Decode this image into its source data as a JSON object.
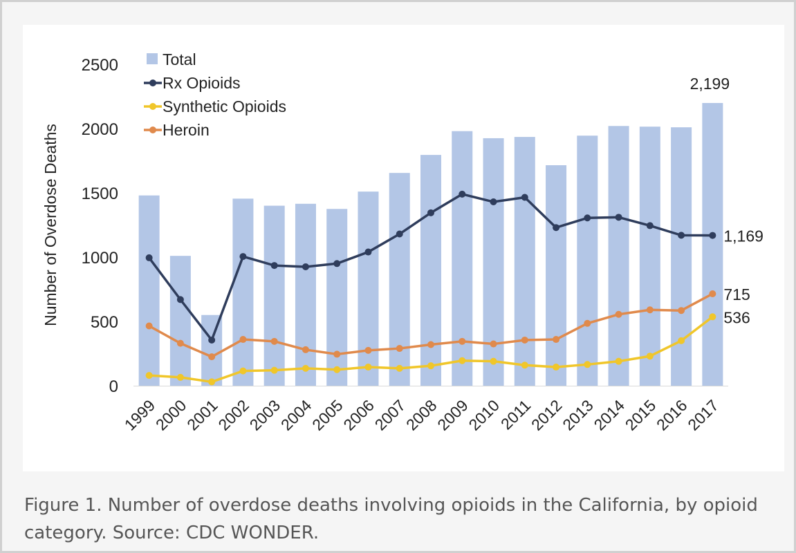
{
  "caption": "Figure 1. Number of overdose deaths involving opioids in the California, by opioid category. Source: CDC WONDER.",
  "colors": {
    "total": "#b3c6e6",
    "rx": "#2f3d5c",
    "synthetic": "#f0c62a",
    "heroin": "#e08a4c",
    "text": "#222222"
  },
  "chart_data": {
    "type": "bar",
    "title": "",
    "xlabel": "",
    "ylabel": "Number of Overdose Deaths",
    "ylim": [
      0,
      2500
    ],
    "yticks": [
      0,
      500,
      1000,
      1500,
      2000,
      2500
    ],
    "grid": false,
    "legend_position": "top-left",
    "categories": [
      "1999",
      "2000",
      "2001",
      "2002",
      "2003",
      "2004",
      "2005",
      "2006",
      "2007",
      "2008",
      "2009",
      "2010",
      "2011",
      "2012",
      "2013",
      "2014",
      "2015",
      "2016",
      "2017"
    ],
    "series": [
      {
        "name": "Total",
        "type": "bar",
        "color": "#b3c6e6",
        "values": [
          1480,
          1010,
          550,
          1455,
          1400,
          1415,
          1375,
          1510,
          1655,
          1795,
          1980,
          1925,
          1935,
          1715,
          1945,
          2020,
          2015,
          2010,
          2199
        ]
      },
      {
        "name": "Rx Opioids",
        "type": "line",
        "color": "#2f3d5c",
        "values": [
          995,
          670,
          355,
          1005,
          935,
          925,
          950,
          1040,
          1180,
          1345,
          1490,
          1430,
          1465,
          1230,
          1305,
          1310,
          1245,
          1170,
          1169
        ]
      },
      {
        "name": "Synthetic Opioids",
        "type": "line",
        "color": "#f0c62a",
        "values": [
          80,
          65,
          30,
          115,
          120,
          135,
          125,
          145,
          135,
          155,
          195,
          190,
          160,
          145,
          165,
          190,
          230,
          350,
          536
        ]
      },
      {
        "name": "Heroin",
        "type": "line",
        "color": "#e08a4c",
        "values": [
          465,
          330,
          225,
          360,
          345,
          280,
          245,
          275,
          290,
          320,
          345,
          325,
          355,
          360,
          485,
          555,
          590,
          585,
          715
        ]
      }
    ],
    "annotations": [
      {
        "series": "Total",
        "index": 18,
        "text": "2,199"
      },
      {
        "series": "Rx Opioids",
        "index": 18,
        "text": "1,169"
      },
      {
        "series": "Heroin",
        "index": 18,
        "text": "715"
      },
      {
        "series": "Synthetic Opioids",
        "index": 18,
        "text": "536"
      }
    ]
  }
}
